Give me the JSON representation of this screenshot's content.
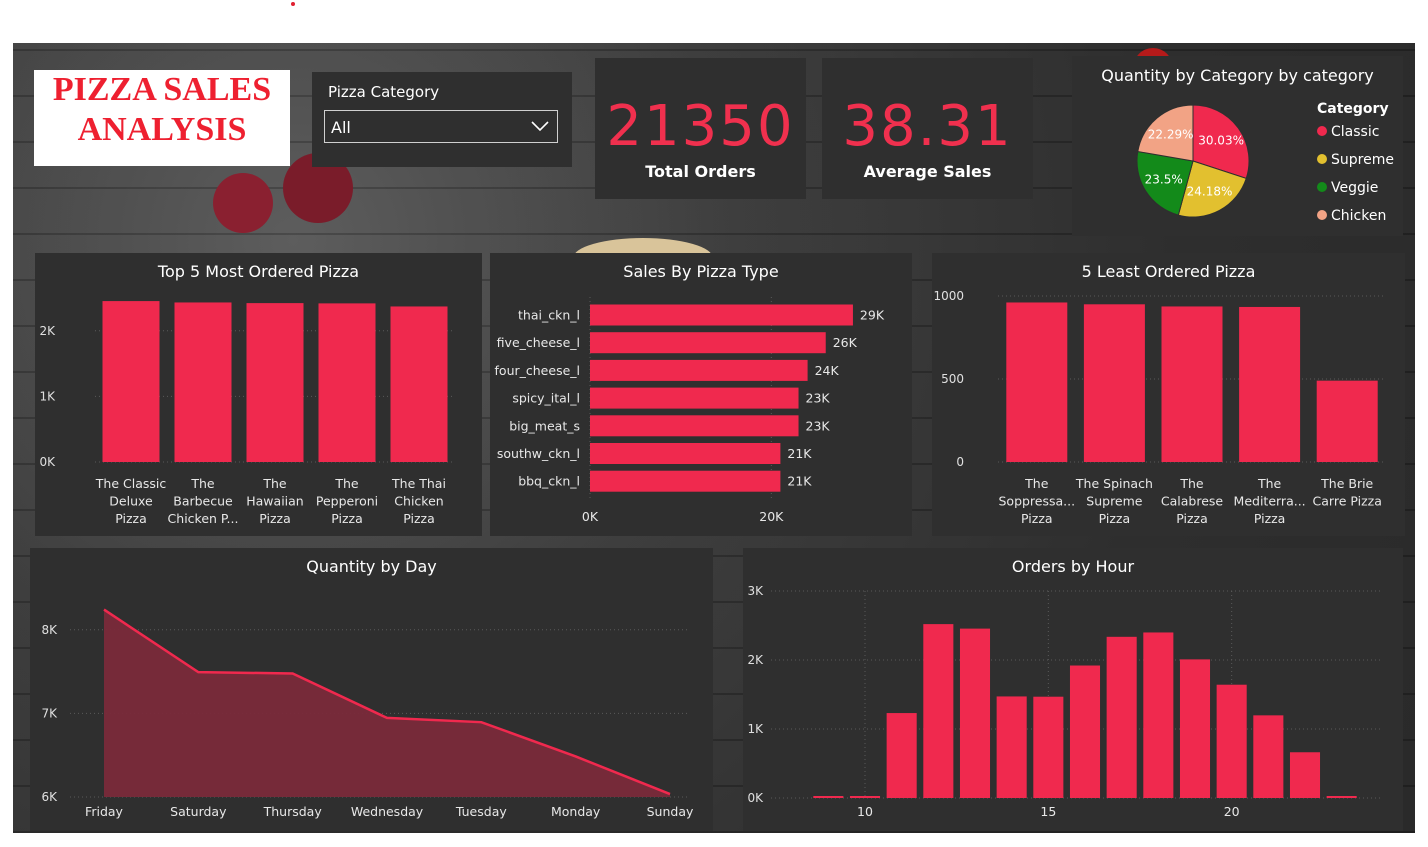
{
  "header": {
    "title_line1": "PIZZA SALES",
    "title_line2": "ANALYSIS"
  },
  "filter": {
    "label": "Pizza Category",
    "value": "All"
  },
  "kpis": [
    {
      "value": "21350",
      "label": "Total Orders"
    },
    {
      "value": "38.31",
      "label": "Average Sales"
    }
  ],
  "colors": {
    "accent": "#f0294e",
    "panel": "#2f2f2f",
    "classic": "#f0294e",
    "supreme": "#e2c02f",
    "veggie": "#138a1a",
    "chicken": "#f2a385"
  },
  "chart_data": [
    {
      "id": "pie",
      "type": "pie",
      "title": "Quantity by Category by category",
      "legend_title": "Category",
      "legend_position": "right",
      "slices": [
        {
          "name": "Classic",
          "value": 30.03,
          "label": "30.03%",
          "color": "#f0294e"
        },
        {
          "name": "Supreme",
          "value": 24.18,
          "label": "24.18%",
          "color": "#e2c02f"
        },
        {
          "name": "Veggie",
          "value": 23.5,
          "label": "23.5%",
          "color": "#138a1a"
        },
        {
          "name": "Chicken",
          "value": 22.29,
          "label": "22.29%",
          "color": "#f2a385"
        }
      ]
    },
    {
      "id": "top5",
      "type": "bar",
      "title": "Top 5 Most Ordered Pizza",
      "categories": [
        [
          "The Classic",
          "Deluxe",
          "Pizza"
        ],
        [
          "The",
          "Barbecue",
          "Chicken P..."
        ],
        [
          "The",
          "Hawaiian",
          "Pizza"
        ],
        [
          "The",
          "Pepperoni",
          "Pizza"
        ],
        [
          "The Thai",
          "Chicken",
          "Pizza"
        ]
      ],
      "values": [
        2453,
        2432,
        2422,
        2418,
        2371
      ],
      "ylim": [
        0,
        2500
      ],
      "yticks": [
        0,
        1000,
        2000
      ],
      "ytick_labels": [
        "0K",
        "1K",
        "2K"
      ]
    },
    {
      "id": "salesType",
      "type": "bar",
      "orientation": "horizontal",
      "title": "Sales By Pizza Type",
      "categories": [
        "thai_ckn_l",
        "five_cheese_l",
        "four_cheese_l",
        "spicy_ital_l",
        "big_meat_s",
        "southw_ckn_l",
        "bbq_ckn_l"
      ],
      "values": [
        29000,
        26000,
        24000,
        23000,
        23000,
        21000,
        21000
      ],
      "value_labels": [
        "29K",
        "26K",
        "24K",
        "23K",
        "23K",
        "21K",
        "21K"
      ],
      "xlim": [
        0,
        30000
      ],
      "xticks": [
        0,
        20000
      ],
      "xtick_labels": [
        "0K",
        "20K"
      ]
    },
    {
      "id": "least5",
      "type": "bar",
      "title": "5 Least Ordered Pizza",
      "categories": [
        [
          "The",
          "Soppressa...",
          "Pizza"
        ],
        [
          "The Spinach",
          "Supreme",
          "Pizza"
        ],
        [
          "The",
          "Calabrese",
          "Pizza"
        ],
        [
          "The",
          "Mediterra...",
          "Pizza"
        ],
        [
          "The Brie",
          "Carre Pizza"
        ]
      ],
      "values": [
        961,
        950,
        937,
        934,
        490
      ],
      "ylim": [
        0,
        1000
      ],
      "yticks": [
        0,
        500,
        1000
      ],
      "ytick_labels": [
        "0",
        "500",
        "1000"
      ]
    },
    {
      "id": "day",
      "type": "area",
      "title": "Quantity by Day",
      "categories": [
        "Friday",
        "Saturday",
        "Thursday",
        "Wednesday",
        "Tuesday",
        "Monday",
        "Sunday"
      ],
      "values": [
        8242,
        7493,
        7478,
        6946,
        6895,
        6485,
        6035
      ],
      "ylim": [
        6000,
        8500
      ],
      "yticks": [
        6000,
        7000,
        8000
      ],
      "ytick_labels": [
        "6K",
        "7K",
        "8K"
      ]
    },
    {
      "id": "hour",
      "type": "bar",
      "title": "Orders by Hour",
      "x": [
        9,
        10,
        11,
        12,
        13,
        14,
        15,
        16,
        17,
        18,
        19,
        20,
        21,
        22,
        23
      ],
      "values": [
        1,
        8,
        1231,
        2520,
        2455,
        1472,
        1468,
        1920,
        2336,
        2399,
        2009,
        1642,
        1198,
        663,
        28
      ],
      "xlim": [
        8.5,
        23.5
      ],
      "xticks": [
        10,
        15,
        20
      ],
      "xtick_labels": [
        "10",
        "15",
        "20"
      ],
      "ylim": [
        0,
        3000
      ],
      "yticks": [
        0,
        1000,
        2000,
        3000
      ],
      "ytick_labels": [
        "0K",
        "1K",
        "2K",
        "3K"
      ],
      "grid": true
    }
  ]
}
